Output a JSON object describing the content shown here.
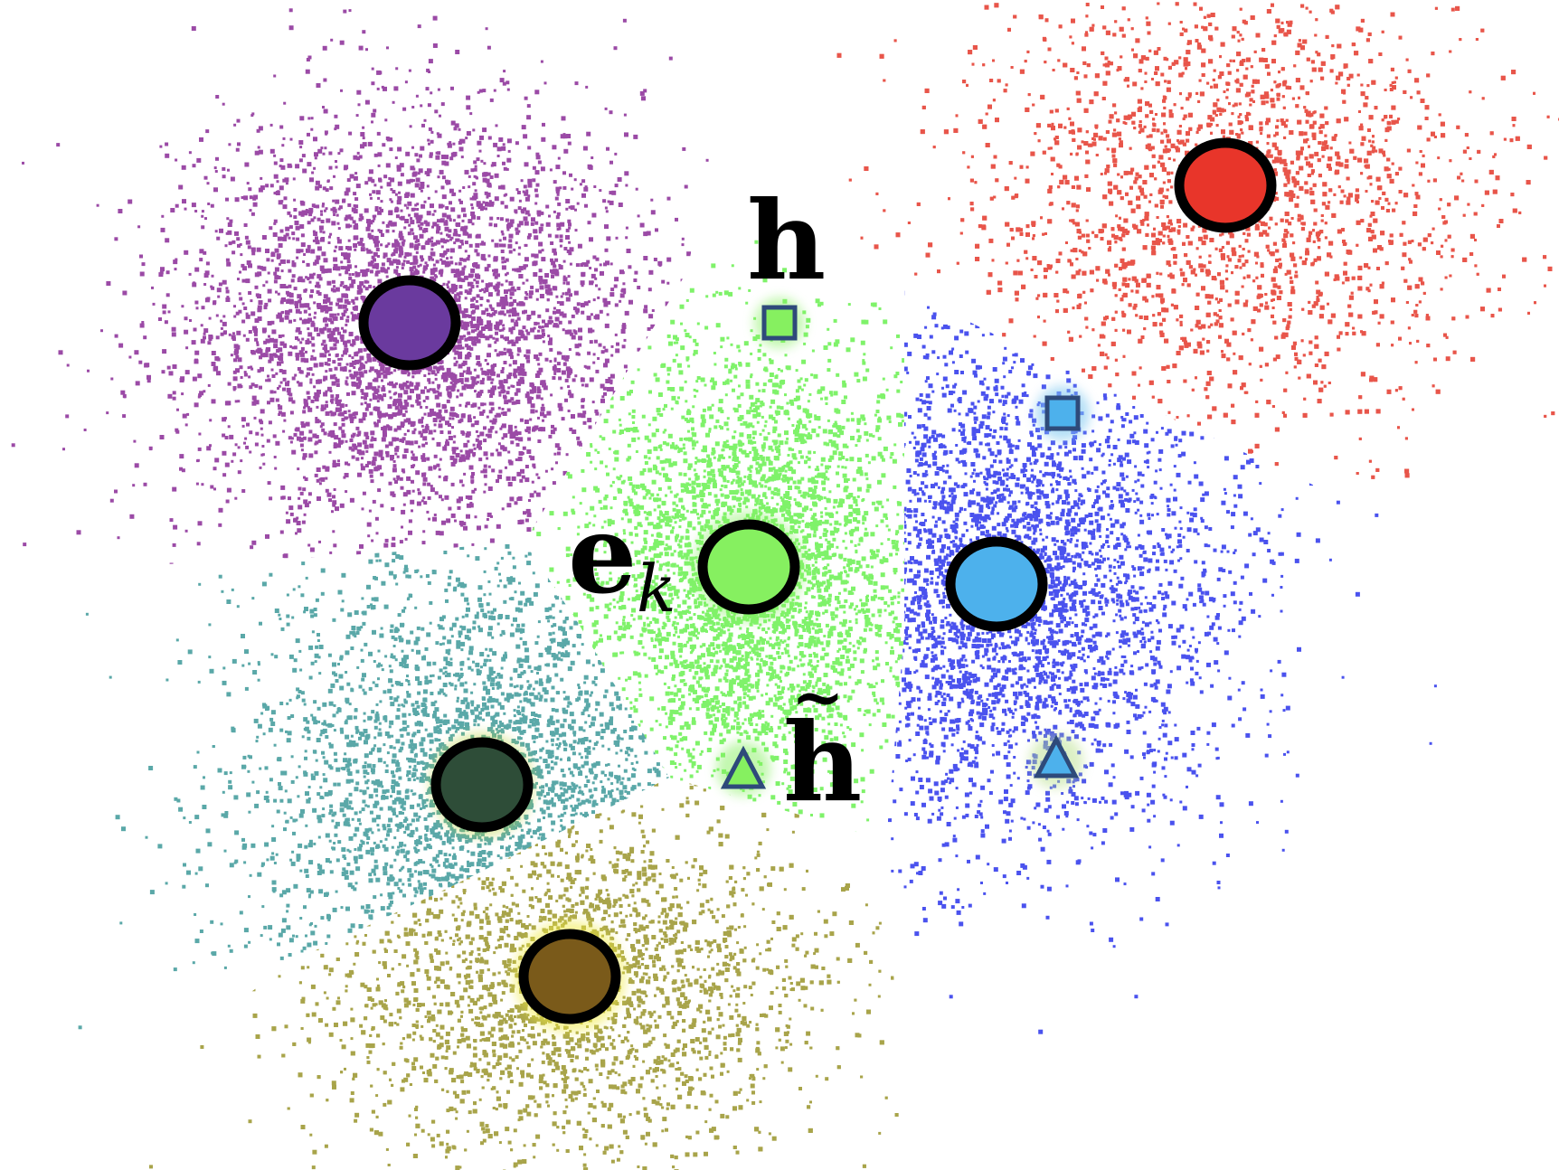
{
  "labels": {
    "h": "h",
    "h_tilde_base": "h",
    "h_tilde_accent": "~",
    "ek_base": "e",
    "ek_sub": "k"
  },
  "clusters": [
    {
      "name": "purple",
      "point_color": "#9b4aa6",
      "centroid_color": "#6a3a9e"
    },
    {
      "name": "red",
      "point_color": "#e8554a",
      "centroid_color": "#e8352a"
    },
    {
      "name": "green",
      "point_color": "#7ff26a",
      "centroid_color": "#86f060"
    },
    {
      "name": "blue",
      "point_color": "#4a52ee",
      "centroid_color": "#4db1ec"
    },
    {
      "name": "teal",
      "point_color": "#5aa8a8",
      "centroid_color": "#2e4d38"
    },
    {
      "name": "olive",
      "point_color": "#a8a44a",
      "centroid_color": "#7a5a1a"
    }
  ],
  "markers": [
    {
      "name": "h-square",
      "shape": "square",
      "fill": "#86f060"
    },
    {
      "name": "blue-square",
      "shape": "square",
      "fill": "#4db1ec"
    },
    {
      "name": "h-tilde-triangle",
      "shape": "triangle",
      "fill": "#86f060"
    },
    {
      "name": "blue-triangle",
      "shape": "triangle",
      "fill": "#4db1ec"
    }
  ],
  "marker_stroke": "#2e4a7a",
  "centroid_stroke": "#000000"
}
